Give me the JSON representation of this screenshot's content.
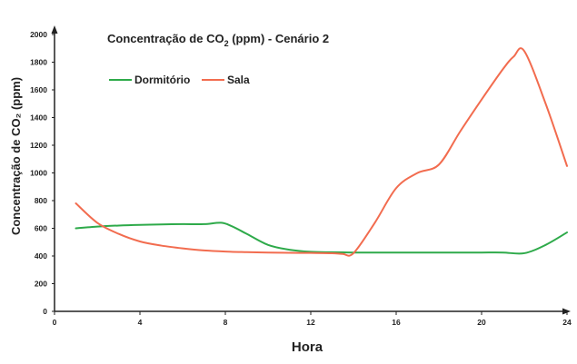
{
  "chart_data": {
    "type": "line",
    "title": {
      "prefix": "Concentração de CO",
      "subscript": "2",
      "suffix": " (ppm) - Cenário 2"
    },
    "xlabel": "Hora",
    "ylabel": "Concentração de CO₂ (ppm)",
    "xlim": [
      0,
      24
    ],
    "ylim": [
      0,
      2000
    ],
    "xticks": [
      "0",
      "4",
      "8",
      "12",
      "16",
      "20",
      "24"
    ],
    "yticks": [
      "0",
      "200",
      "400",
      "600",
      "800",
      "1000",
      "1200",
      "1400",
      "1600",
      "1800",
      "2000"
    ],
    "grid": false,
    "legend_position": "top-left",
    "series": [
      {
        "name": "Dormitório",
        "color": "#2eaa4a",
        "x": [
          1,
          2,
          3,
          4,
          5,
          6,
          7,
          7.8,
          8.3,
          9,
          10,
          11,
          12,
          13,
          14,
          15,
          16,
          17,
          18,
          19,
          20,
          21,
          22,
          23,
          24
        ],
        "y": [
          600,
          612,
          620,
          625,
          628,
          630,
          630,
          640,
          615,
          560,
          480,
          445,
          430,
          427,
          425,
          425,
          425,
          425,
          425,
          425,
          425,
          425,
          420,
          480,
          570
        ]
      },
      {
        "name": "Sala",
        "color": "#f26c4f",
        "x": [
          1,
          2,
          3,
          4,
          5,
          6,
          7,
          8,
          9,
          10,
          11,
          12,
          13,
          13.5,
          14,
          15,
          16,
          17,
          18,
          19,
          20,
          21,
          21.5,
          22,
          23,
          24
        ],
        "y": [
          780,
          640,
          560,
          505,
          475,
          455,
          440,
          432,
          428,
          425,
          423,
          422,
          420,
          415,
          420,
          640,
          890,
          1000,
          1060,
          1300,
          1530,
          1750,
          1840,
          1880,
          1500,
          1050
        ]
      }
    ]
  }
}
